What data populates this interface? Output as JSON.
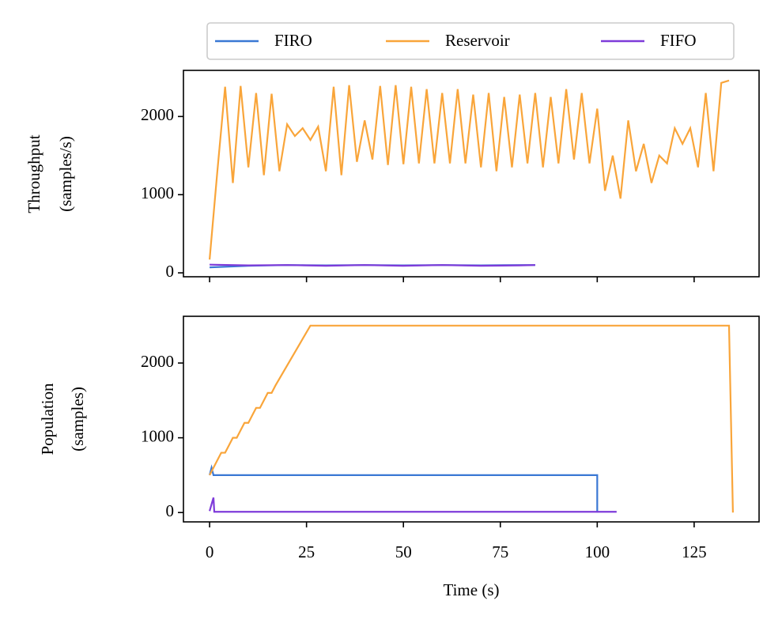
{
  "chart_data": [
    {
      "type": "line",
      "ylabel": [
        "Throughput",
        "(samples/s)"
      ],
      "xlim": [
        -6.75,
        141.75
      ],
      "xticks": [
        0,
        25,
        50,
        75,
        100,
        125
      ],
      "ylim": [
        -50,
        2590
      ],
      "yticks": [
        0,
        1000,
        2000
      ],
      "legend": "upper center",
      "series": [
        {
          "name": "FIRO",
          "color": "#3a78d4",
          "x": [
            0,
            10,
            20,
            30,
            40,
            50,
            60,
            70,
            80,
            84
          ],
          "values": [
            70,
            90,
            100,
            95,
            100,
            95,
            100,
            95,
            100,
            100
          ]
        },
        {
          "name": "Reservoir",
          "color": "#f9a53a",
          "x": [
            0,
            2,
            4,
            6,
            8,
            10,
            12,
            14,
            16,
            18,
            20,
            22,
            24,
            26,
            28,
            30,
            32,
            34,
            36,
            38,
            40,
            42,
            44,
            46,
            48,
            50,
            52,
            54,
            56,
            58,
            60,
            62,
            64,
            66,
            68,
            70,
            72,
            74,
            76,
            78,
            80,
            82,
            84,
            86,
            88,
            90,
            92,
            94,
            96,
            98,
            100,
            102,
            104,
            106,
            108,
            110,
            112,
            114,
            116,
            118,
            120,
            122,
            124,
            126,
            128,
            130,
            132,
            134
          ],
          "values": [
            170,
            1300,
            2380,
            1150,
            2390,
            1350,
            2300,
            1250,
            2290,
            1300,
            1900,
            1750,
            1850,
            1700,
            1870,
            1300,
            2380,
            1250,
            2400,
            1420,
            1950,
            1450,
            2390,
            1380,
            2400,
            1390,
            2380,
            1400,
            2350,
            1400,
            2300,
            1400,
            2350,
            1400,
            2280,
            1350,
            2300,
            1300,
            2250,
            1350,
            2280,
            1400,
            2300,
            1350,
            2250,
            1400,
            2350,
            1450,
            2300,
            1400,
            2100,
            1050,
            1500,
            950,
            1950,
            1300,
            1650,
            1150,
            1500,
            1400,
            1850,
            1650,
            1850,
            1350,
            2300,
            1300,
            2430,
            2460
          ]
        },
        {
          "name": "FIFO",
          "color": "#7e3bd9",
          "x": [
            0,
            10,
            20,
            30,
            40,
            50,
            60,
            70,
            80,
            84
          ],
          "values": [
            105,
            95,
            100,
            90,
            100,
            90,
            100,
            90,
            95,
            100
          ]
        }
      ]
    },
    {
      "type": "line",
      "ylabel": [
        "Population",
        "(samples)"
      ],
      "xlabel": "Time (s)",
      "xlim": [
        -6.75,
        141.75
      ],
      "xticks": [
        0,
        25,
        50,
        75,
        100,
        125
      ],
      "ylim": [
        -125,
        2625
      ],
      "yticks": [
        0,
        1000,
        2000
      ],
      "series": [
        {
          "name": "FIRO",
          "color": "#3a78d4",
          "x": [
            0,
            0.5,
            1,
            100,
            100
          ],
          "values": [
            500,
            600,
            500,
            500,
            0
          ]
        },
        {
          "name": "Reservoir",
          "color": "#f9a53a",
          "x": [
            0,
            1,
            2,
            3,
            4,
            5,
            6,
            7,
            8,
            9,
            10,
            11,
            12,
            13,
            14,
            15,
            16,
            17,
            26,
            134,
            135
          ],
          "values": [
            500,
            600,
            700,
            800,
            800,
            900,
            1000,
            1000,
            1100,
            1200,
            1200,
            1300,
            1400,
            1400,
            1500,
            1600,
            1600,
            1700,
            2500,
            2500,
            0
          ]
        },
        {
          "name": "FIFO",
          "color": "#7e3bd9",
          "x": [
            0,
            1,
            1.2,
            105
          ],
          "values": [
            20,
            200,
            10,
            10
          ]
        }
      ]
    }
  ]
}
